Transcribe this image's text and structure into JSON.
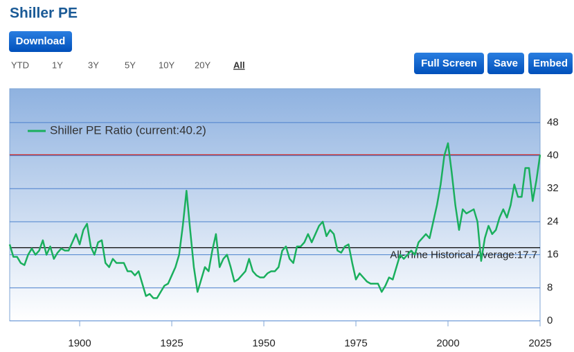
{
  "header": {
    "title": "Shiller PE",
    "download": "Download",
    "ranges": [
      "YTD",
      "1Y",
      "3Y",
      "5Y",
      "10Y",
      "20Y",
      "All"
    ],
    "active_range_index": 6,
    "buttons": [
      "Full Screen",
      "Save",
      "Embed"
    ]
  },
  "chart_data": {
    "type": "line",
    "x": [
      1881,
      1882,
      1883,
      1884,
      1885,
      1886,
      1887,
      1888,
      1889,
      1890,
      1891,
      1892,
      1893,
      1894,
      1895,
      1896,
      1897,
      1898,
      1899,
      1900,
      1901,
      1902,
      1903,
      1904,
      1905,
      1906,
      1907,
      1908,
      1909,
      1910,
      1911,
      1912,
      1913,
      1914,
      1915,
      1916,
      1917,
      1918,
      1919,
      1920,
      1921,
      1922,
      1923,
      1924,
      1925,
      1926,
      1927,
      1928,
      1929,
      1930,
      1931,
      1932,
      1933,
      1934,
      1935,
      1936,
      1937,
      1938,
      1939,
      1940,
      1941,
      1942,
      1943,
      1944,
      1945,
      1946,
      1947,
      1948,
      1949,
      1950,
      1951,
      1952,
      1953,
      1954,
      1955,
      1956,
      1957,
      1958,
      1959,
      1960,
      1961,
      1962,
      1963,
      1964,
      1965,
      1966,
      1967,
      1968,
      1969,
      1970,
      1971,
      1972,
      1973,
      1974,
      1975,
      1976,
      1977,
      1978,
      1979,
      1980,
      1981,
      1982,
      1983,
      1984,
      1985,
      1986,
      1987,
      1988,
      1989,
      1990,
      1991,
      1992,
      1993,
      1994,
      1995,
      1996,
      1997,
      1998,
      1999,
      2000,
      2001,
      2002,
      2003,
      2004,
      2005,
      2006,
      2007,
      2008,
      2009,
      2010,
      2011,
      2012,
      2013,
      2014,
      2015,
      2016,
      2017,
      2018,
      2019,
      2020,
      2021,
      2022,
      2023,
      2024,
      2025
    ],
    "series": [
      {
        "name": "Shiller PE Ratio (current:40.2)",
        "color": "#1aaf5d",
        "values": [
          18.5,
          15.5,
          15.5,
          14,
          13.5,
          16,
          17.5,
          16,
          17,
          19.5,
          16,
          18,
          15,
          16.5,
          17.5,
          17,
          17,
          19,
          21,
          18.5,
          22,
          23.5,
          18,
          16,
          19,
          19.5,
          14,
          13,
          15,
          14,
          14,
          14,
          12,
          12,
          11,
          12,
          9,
          6,
          6.5,
          5.5,
          5.5,
          7,
          8.5,
          9,
          11,
          13,
          16,
          23,
          31.5,
          22,
          13,
          7,
          10,
          13,
          12,
          17,
          21,
          13,
          15,
          16,
          13,
          9.5,
          10,
          11,
          12,
          15,
          12,
          11,
          10.5,
          10.5,
          11.5,
          12,
          12,
          13,
          17,
          18,
          15,
          14,
          18,
          18,
          19,
          21,
          19,
          21,
          23,
          24,
          20.5,
          22,
          21,
          17,
          16.5,
          18,
          18.5,
          14,
          10,
          11.5,
          10.5,
          9.5,
          9,
          9,
          9,
          7,
          8.5,
          10.5,
          10,
          13,
          16,
          15,
          16,
          17,
          16,
          19,
          20,
          21,
          20,
          24,
          28,
          33,
          40,
          43,
          36,
          28,
          22,
          27,
          26,
          26.5,
          27,
          24,
          14.5,
          20,
          23,
          21,
          22,
          25,
          27,
          25,
          28,
          33,
          30,
          30,
          37,
          37,
          29,
          34,
          40.2
        ]
      }
    ],
    "reference_lines": [
      {
        "value": 40.2,
        "color": "#cc2222"
      },
      {
        "value": 17.7,
        "color": "#000000",
        "label": "All-Time Historical Average:17.7"
      }
    ],
    "xlim": [
      1881,
      2025
    ],
    "xticks": [
      1900,
      1925,
      1950,
      1975,
      2000,
      2025
    ],
    "ylim": [
      0,
      56.2
    ],
    "yticks": [
      0,
      8,
      16,
      24,
      32,
      40,
      48
    ],
    "grid": true,
    "legend": "upper left"
  }
}
